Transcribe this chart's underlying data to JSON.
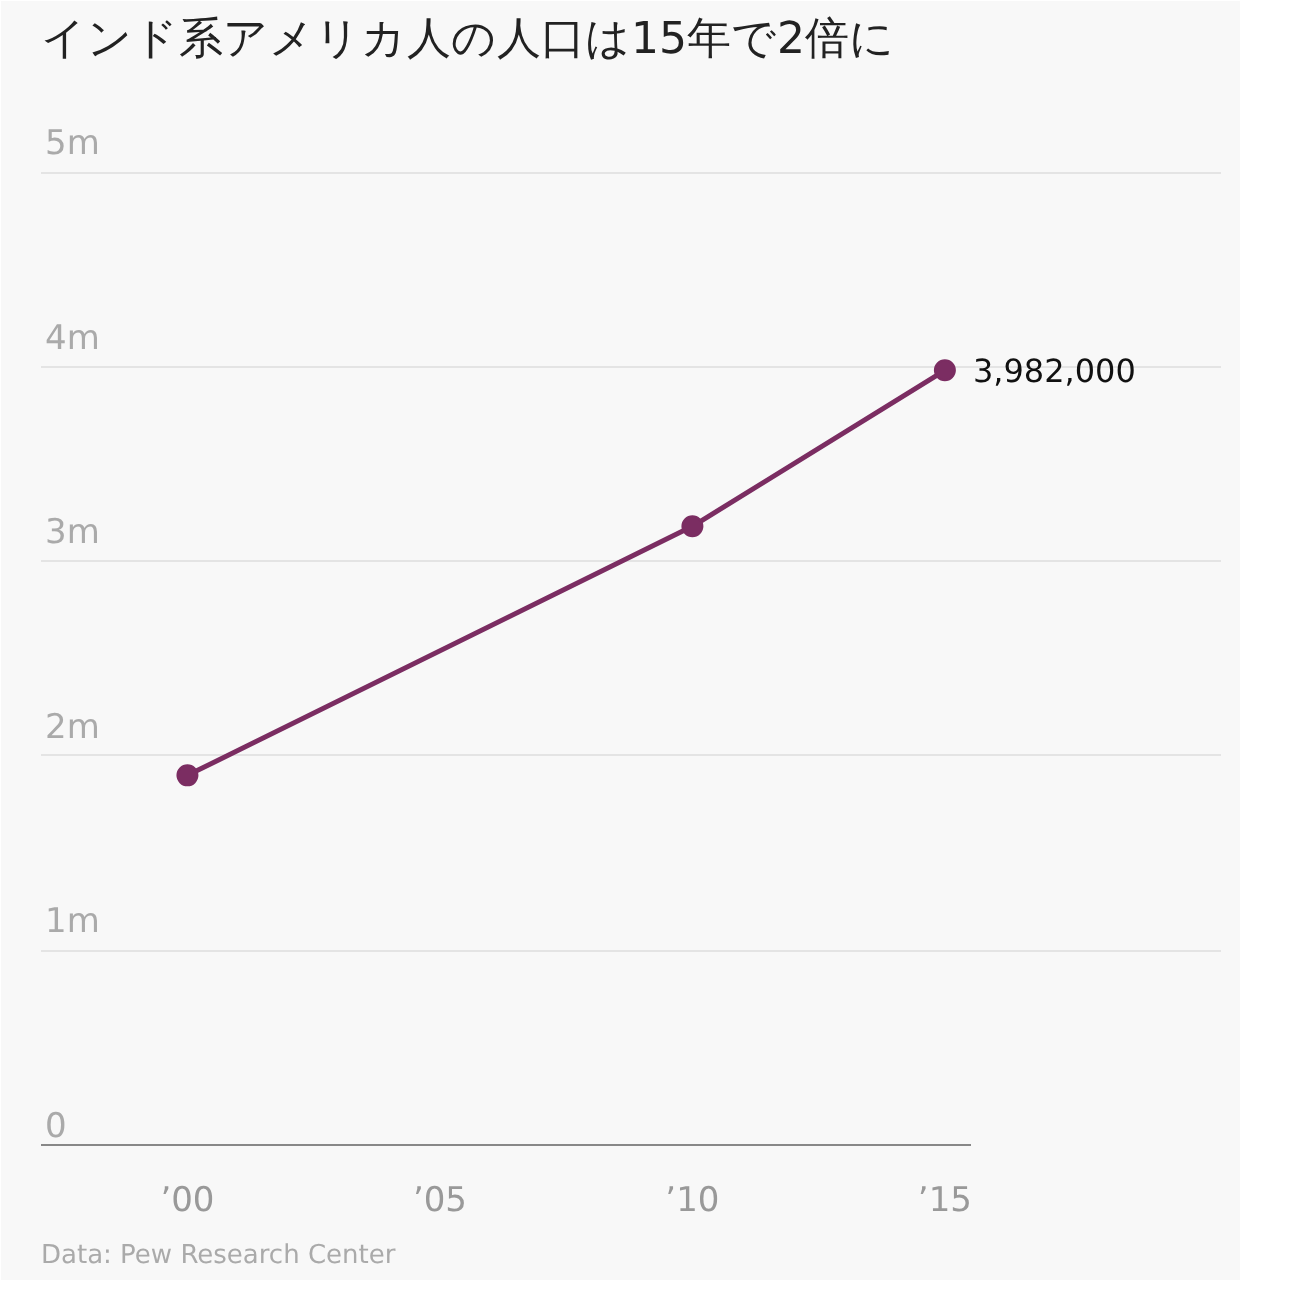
{
  "chart_data": {
    "type": "line",
    "title": "インド系アメリカ人の人口は15年で2倍に",
    "x": [
      2000,
      2010,
      2015
    ],
    "series": [
      {
        "color": "#7b2d62",
        "values": [
          1900000,
          3180000,
          3982000
        ],
        "value_labels": [
          null,
          null,
          "3,982,000"
        ]
      }
    ],
    "xlim": [
      1997.1,
      2015.5
    ],
    "xticks": [
      {
        "value": 2000,
        "label": "’00"
      },
      {
        "value": 2005,
        "label": "’05"
      },
      {
        "value": 2010,
        "label": "’10"
      },
      {
        "value": 2015,
        "label": "’15"
      }
    ],
    "ylim": [
      0,
      5500000
    ],
    "yticks": [
      {
        "value": 0,
        "label": "0"
      },
      {
        "value": 1000000,
        "label": "1m"
      },
      {
        "value": 2000000,
        "label": "2m"
      },
      {
        "value": 3000000,
        "label": "3m"
      },
      {
        "value": 4000000,
        "label": "4m"
      },
      {
        "value": 5000000,
        "label": "5m"
      }
    ],
    "grid": "y",
    "marker": "circle",
    "line_style": "solid",
    "annotations": [
      "Data: Pew Research Center"
    ]
  }
}
